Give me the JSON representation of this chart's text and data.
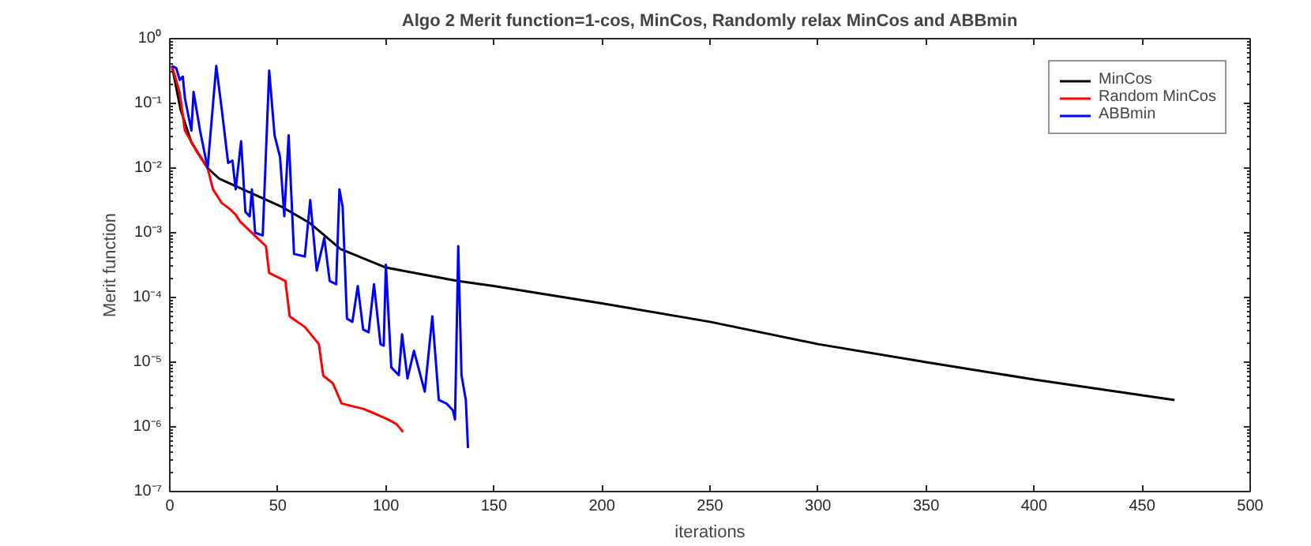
{
  "chart_data": {
    "type": "line",
    "title": "Algo 2 Merit function=1-cos, MinCos, Randomly relax MinCos and ABBmin",
    "xlabel": "iterations",
    "ylabel": "Merit function",
    "log": "y",
    "grid": false,
    "legend": "top right",
    "marker": "none",
    "line_style": "solid",
    "xlim": [
      0,
      500
    ],
    "xticks": [
      0,
      50,
      100,
      150,
      200,
      250,
      300,
      350,
      400,
      450,
      500
    ],
    "ylim": [
      1e-07,
      1
    ],
    "yticks": [
      {
        "value": 1e-07,
        "label": "10⁻⁷"
      },
      {
        "value": 1e-06,
        "label": "10⁻⁶"
      },
      {
        "value": 1e-05,
        "label": "10⁻⁵"
      },
      {
        "value": 0.0001,
        "label": "10⁻⁴"
      },
      {
        "value": 0.001,
        "label": "10⁻³"
      },
      {
        "value": 0.01,
        "label": "10⁻²"
      },
      {
        "value": 0.1,
        "label": "10⁻¹"
      },
      {
        "value": 1,
        "label": "10⁰"
      }
    ],
    "series": [
      {
        "name": "MinCos",
        "color": "#000000",
        "x": [
          1,
          5,
          10,
          17.5,
          23,
          35,
          52,
          65,
          79,
          100,
          133,
          150,
          200,
          250,
          300,
          350,
          400,
          465
        ],
        "values": [
          0.38,
          0.08,
          0.025,
          0.01,
          0.0068,
          0.0045,
          0.0025,
          0.0014,
          0.00056,
          0.00029,
          0.00018,
          0.00015,
          8.1e-05,
          4.2e-05,
          1.9e-05,
          1e-05,
          5.4e-06,
          2.6e-06
        ]
      },
      {
        "name": "Random MinCos",
        "color": "#ff0000",
        "x": [
          1,
          4.5,
          7,
          12.5,
          17.5,
          20,
          24,
          28,
          30.5,
          32.5,
          40.5,
          44.5,
          46,
          53.5,
          55.5,
          62.5,
          69,
          71,
          75.5,
          79.5,
          89.5,
          95,
          101,
          105,
          108
        ],
        "values": [
          0.38,
          0.15,
          0.038,
          0.018,
          0.01,
          0.0047,
          0.0029,
          0.0023,
          0.0019,
          0.0015,
          0.00083,
          0.00062,
          0.00024,
          0.00018,
          5.1e-05,
          3.5e-05,
          1.9e-05,
          6.2e-06,
          4.7e-06,
          2.3e-06,
          1.9e-06,
          1.6e-06,
          1.3e-06,
          1.1e-06,
          8.3e-07
        ]
      },
      {
        "name": "ABBmin",
        "color": "#0000ff",
        "x": [
          1,
          3,
          4.6,
          6,
          7,
          10,
          11,
          14,
          17.5,
          21.5,
          24,
          27,
          29,
          30.5,
          33,
          35,
          37,
          38,
          39.5,
          43,
          46,
          48.5,
          51,
          53,
          55,
          57.5,
          62.5,
          65,
          68,
          70,
          71.5,
          74,
          77,
          78.5,
          80,
          82,
          84.5,
          87,
          89.5,
          92,
          94.5,
          97.5,
          99,
          100,
          102.5,
          106,
          107.5,
          110,
          113,
          118,
          121.5,
          124.5,
          128,
          131,
          132,
          133.5,
          135,
          137,
          138
        ],
        "values": [
          0.38,
          0.35,
          0.23,
          0.26,
          0.12,
          0.038,
          0.15,
          0.038,
          0.01,
          0.38,
          0.083,
          0.012,
          0.013,
          0.0047,
          0.026,
          0.0021,
          0.0018,
          0.0047,
          0.001,
          0.00091,
          0.32,
          0.032,
          0.015,
          0.0018,
          0.032,
          0.00047,
          0.00043,
          0.0032,
          0.00026,
          0.0005,
          0.00083,
          0.00018,
          0.00016,
          0.0047,
          0.0025,
          4.7e-05,
          4.2e-05,
          0.00015,
          3.2e-05,
          2.9e-05,
          0.00016,
          1.9e-05,
          1.8e-05,
          0.00032,
          8.3e-06,
          6.3e-06,
          2.7e-05,
          5.6e-06,
          1.5e-05,
          3.5e-06,
          5.1e-05,
          2.6e-06,
          2.3e-06,
          1.8e-06,
          1.3e-06,
          0.00062,
          6.3e-06,
          2.6e-06,
          4.7e-07
        ]
      }
    ]
  }
}
